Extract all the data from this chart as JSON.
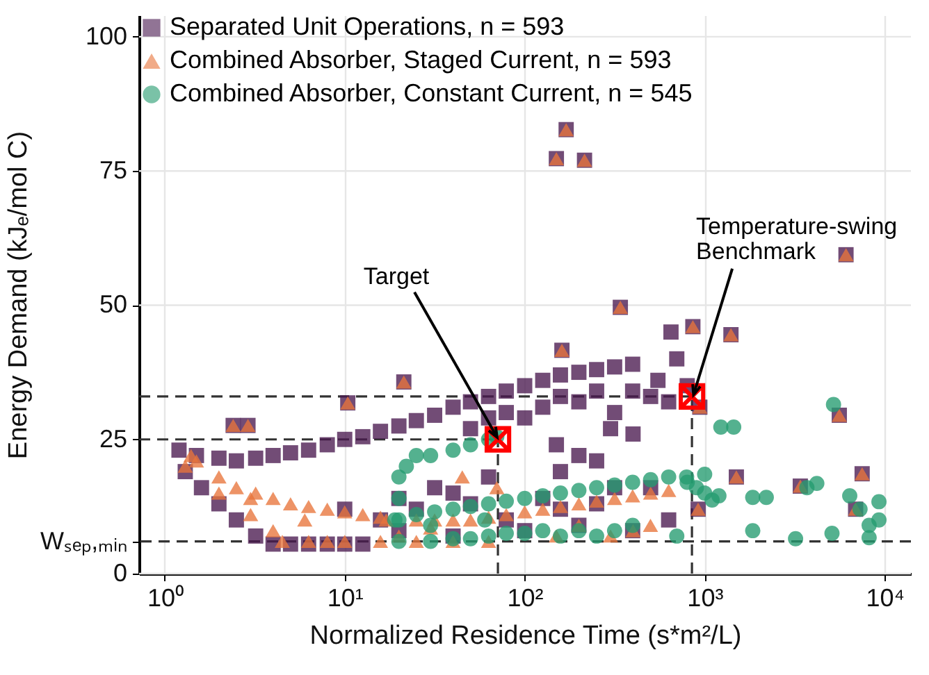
{
  "chart_data": {
    "type": "scatter",
    "xlabel": "Normalized Residence Time (s*m²/L)",
    "ylabel": "Energy Demand (kJₑ/mol C)",
    "log": "x",
    "grid": true,
    "legend": "top left",
    "xlim": [
      0.72,
      14000
    ],
    "ylim": [
      0,
      104
    ],
    "xticks": [
      {
        "value": 1,
        "label": "10⁰"
      },
      {
        "value": 10,
        "label": "10¹"
      },
      {
        "value": 100,
        "label": "10²"
      },
      {
        "value": 1000,
        "label": "10³"
      },
      {
        "value": 10000,
        "label": "10⁴"
      }
    ],
    "yticks": [
      0,
      {
        "value": 6,
        "label": "Wₛₑₚ,ₘᵢₙ"
      },
      25,
      50,
      75,
      100
    ],
    "ref_lines": [
      {
        "axis": "y",
        "value": 33,
        "color": "#333333",
        "line_style": "dashed"
      },
      {
        "axis": "y",
        "value": 25,
        "color": "#333333",
        "line_style": "dashed"
      },
      {
        "axis": "y",
        "value": 6,
        "color": "#333333",
        "line_style": "dashed"
      },
      {
        "axis": "x",
        "value": 71,
        "color": "#333333",
        "line_style": "dashed"
      },
      {
        "axis": "x",
        "value": 850,
        "color": "#333333",
        "line_style": "dashed"
      }
    ],
    "annotations": [
      {
        "text": "Target",
        "x": 71,
        "y": 25
      },
      {
        "text": "Temperature-swing Benchmark",
        "x": 850,
        "y": 33
      }
    ],
    "series": [
      {
        "name": "Separated Unit Operations, n = 593",
        "type": "scatter",
        "marker": "square",
        "color": "#4a1a50",
        "x": [
          1.2,
          1.5,
          2,
          2.5,
          3.2,
          4,
          5,
          6.3,
          8,
          10,
          12.6,
          15.8,
          20,
          25,
          31.6,
          40,
          50,
          63,
          79,
          100,
          126,
          158,
          200,
          251,
          316,
          398,
          50,
          63,
          79,
          100,
          126,
          158,
          200,
          251,
          316,
          398,
          150,
          200,
          300,
          400,
          501,
          631,
          550,
          700,
          650,
          800,
          251,
          158,
          1.3,
          1.6,
          2,
          2.5,
          3.2,
          4,
          5,
          6.3,
          8,
          10,
          12.6,
          10,
          15.8,
          20,
          25,
          31.6,
          40,
          50,
          63,
          79,
          100,
          126,
          158,
          200,
          251,
          316,
          398,
          501,
          631,
          20,
          40,
          2.4,
          2.9,
          10.4,
          21.3,
          150,
          170,
          215,
          340,
          161,
          860,
          1400,
          6100,
          5600,
          7500,
          3400,
          1500,
          6900,
          920,
          940
        ],
        "values": [
          23,
          22,
          21.5,
          21,
          21.5,
          22,
          22.5,
          23,
          24,
          25,
          25.5,
          26.5,
          27.5,
          28.5,
          29.5,
          31,
          32,
          33,
          34,
          35,
          36,
          37,
          37.5,
          38,
          38.5,
          39,
          27,
          29,
          30,
          29,
          31,
          33,
          32,
          34,
          30,
          34,
          24,
          22,
          27,
          26,
          33,
          32,
          36,
          40,
          45,
          35,
          21,
          19,
          19,
          16,
          13,
          10,
          7,
          5.5,
          5.5,
          5.5,
          5.5,
          5.5,
          5.5,
          12,
          10,
          14,
          12,
          16,
          15,
          13,
          18,
          10,
          8,
          14,
          12,
          9,
          13,
          16,
          8,
          16,
          10,
          8,
          7,
          27.6,
          27.6,
          31.8,
          35.7,
          77.3,
          82.7,
          77,
          49.6,
          41.6,
          46,
          44.5,
          59.4,
          29.5,
          18.6,
          16.3,
          18,
          12,
          12,
          31
        ]
      },
      {
        "name": "Combined Absorber, Staged Current, n = 593",
        "type": "scatter",
        "marker": "triangle",
        "color": "#e8743b",
        "x": [
          1.4,
          1.5,
          2,
          2.5,
          3.2,
          4,
          5,
          6.3,
          8,
          10,
          12.6,
          15.8,
          17,
          25,
          31.6,
          40,
          50,
          63,
          79,
          100,
          126,
          158,
          200,
          251,
          316,
          398,
          501,
          631,
          4.5,
          6.3,
          8,
          10,
          15.8,
          25,
          40,
          63,
          1.3,
          2,
          3,
          4,
          3,
          6,
          20,
          30,
          70,
          150,
          200,
          300,
          400,
          500,
          45,
          2.4,
          2.9,
          10.4,
          21.3,
          150,
          170,
          215,
          340,
          161,
          860,
          1400,
          6100,
          5600,
          7500,
          3400,
          1500,
          6900,
          920,
          940
        ],
        "values": [
          22,
          21,
          18,
          16,
          15,
          14,
          13,
          12.5,
          12,
          11.5,
          11,
          10.5,
          10,
          10,
          10,
          10,
          10,
          10.5,
          11,
          11.5,
          12,
          12.5,
          13,
          13.5,
          14,
          14.5,
          15,
          15.5,
          6,
          6,
          6,
          6,
          6,
          6,
          6,
          6,
          20,
          15,
          11,
          8,
          14,
          10,
          7,
          8.5,
          16,
          7,
          9,
          7,
          8,
          9,
          18,
          27.6,
          27.6,
          31.8,
          35.7,
          77.3,
          82.7,
          77,
          49.6,
          41.6,
          46,
          44.5,
          59.4,
          29.5,
          18.6,
          16.3,
          18,
          12,
          12,
          31
        ]
      },
      {
        "name": "Combined Absorber, Constant Current, n = 545",
        "type": "scatter",
        "marker": "circle",
        "color": "#249b6f",
        "x": [
          20,
          20,
          19,
          20,
          22,
          25,
          30,
          40,
          50,
          63,
          70,
          20,
          25,
          31.6,
          40,
          50,
          63,
          79,
          100,
          126,
          158,
          200,
          251,
          316,
          398,
          501,
          631,
          794,
          1000,
          30,
          40,
          50,
          63,
          79,
          100,
          126,
          158,
          200,
          251,
          316,
          398,
          30,
          60,
          5200,
          1230,
          1450,
          1850,
          2200,
          4200,
          3700,
          1850,
          3200,
          5100,
          6400,
          9300,
          9300,
          8200,
          8200,
          7300,
          700,
          1200,
          1100,
          1000,
          900,
          800
        ],
        "values": [
          18,
          14,
          10,
          6,
          20,
          22,
          22,
          23,
          24,
          25,
          25.5,
          10,
          11,
          11.5,
          12,
          12.5,
          13,
          13.5,
          14,
          14.5,
          15,
          15.5,
          16,
          16.5,
          17,
          17.5,
          18,
          18,
          18.5,
          6,
          6.5,
          6.5,
          7,
          7.5,
          7.5,
          8,
          7,
          8,
          7,
          8,
          9,
          9,
          10,
          31.5,
          27.3,
          27.3,
          14.2,
          14.2,
          16.8,
          16,
          8,
          6.5,
          7.5,
          14.5,
          13.4,
          10,
          9,
          6.7,
          12,
          7,
          14.5,
          13.7,
          15,
          16,
          17
        ]
      },
      {
        "type": "scatter",
        "marker": "cross",
        "color": "#ff0000",
        "x": [
          71,
          850
        ],
        "values": [
          25,
          33
        ]
      }
    ]
  }
}
